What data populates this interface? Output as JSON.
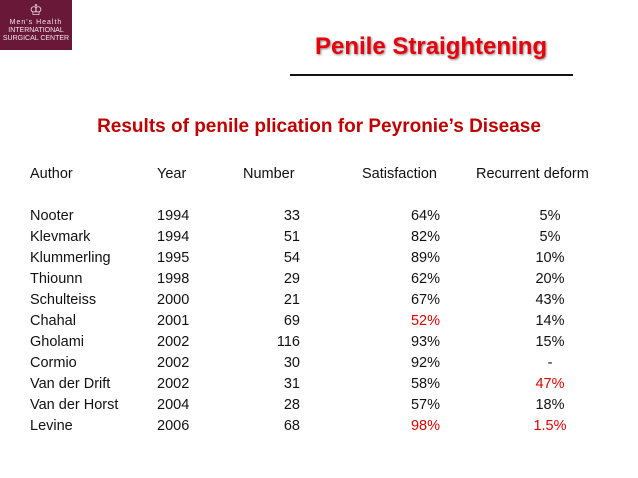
{
  "logo": {
    "line1": "Men's Health",
    "line2": "INTERNATIONAL",
    "line3": "SURGICAL CENTER"
  },
  "title": "Penile Straightening",
  "subtitle": "Results of penile plication for Peyronie’s Disease",
  "highlight_color": "#e00000",
  "table": {
    "headers": [
      "Author",
      "Year",
      "Number",
      "Satisfaction",
      "Recurrent deform"
    ],
    "rows": [
      {
        "cells": [
          "Nooter",
          "1994",
          "33",
          "64%",
          "5%"
        ],
        "red": []
      },
      {
        "cells": [
          "Klevmark",
          "1994",
          "51",
          "82%",
          "5%"
        ],
        "red": []
      },
      {
        "cells": [
          "Klummerling",
          "1995",
          "54",
          "89%",
          "10%"
        ],
        "red": []
      },
      {
        "cells": [
          "Thiounn",
          "1998",
          "29",
          "62%",
          "20%"
        ],
        "red": []
      },
      {
        "cells": [
          "Schulteiss",
          "2000",
          "21",
          "67%",
          "43%"
        ],
        "red": []
      },
      {
        "cells": [
          "Chahal",
          "2001",
          "69",
          "52%",
          "14%"
        ],
        "red": [
          3
        ]
      },
      {
        "cells": [
          "Gholami",
          "2002",
          "116",
          "93%",
          "15%"
        ],
        "red": []
      },
      {
        "cells": [
          "Cormio",
          "2002",
          "30",
          "92%",
          "-"
        ],
        "red": []
      },
      {
        "cells": [
          "Van der Drift",
          "2002",
          "31",
          "58%",
          "47%"
        ],
        "red": [
          4
        ]
      },
      {
        "cells": [
          "Van der Horst",
          "2004",
          "28",
          "57%",
          "18%"
        ],
        "red": []
      },
      {
        "cells": [
          "Levine",
          "2006",
          "68",
          "98%",
          "1.5%"
        ],
        "red": [
          3,
          4
        ]
      }
    ]
  }
}
